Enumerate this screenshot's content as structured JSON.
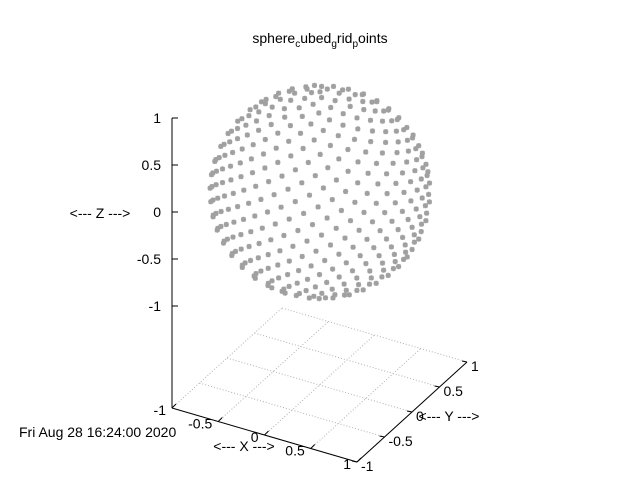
{
  "chart_data": {
    "type": "scatter",
    "title_parts": [
      "sphere",
      "c",
      "ubed",
      "g",
      "rid",
      "p",
      "oints"
    ],
    "xlabel": "<--- X --->",
    "ylabel": "<--- Y --->",
    "zlabel": "<--- Z --->",
    "xlim": [
      -1,
      1
    ],
    "ylim": [
      -1,
      1
    ],
    "zlim": [
      -1,
      1
    ],
    "x_ticks": [
      "-1",
      "-0.5",
      "0",
      "0.5",
      "1"
    ],
    "y_ticks": [
      "-1",
      "-0.5",
      "0",
      "0.5",
      "1"
    ],
    "z_ticks": [
      "1",
      "0.5",
      "0",
      "-0.5",
      "-1"
    ],
    "grid": true,
    "point_color": "#a0a0a0",
    "series": [
      {
        "shape": "sphere",
        "radius": 1,
        "grid": "cubed",
        "point_count": 650
      }
    ]
  },
  "timestamp": "Fri Aug 28 16:24:00 2020"
}
